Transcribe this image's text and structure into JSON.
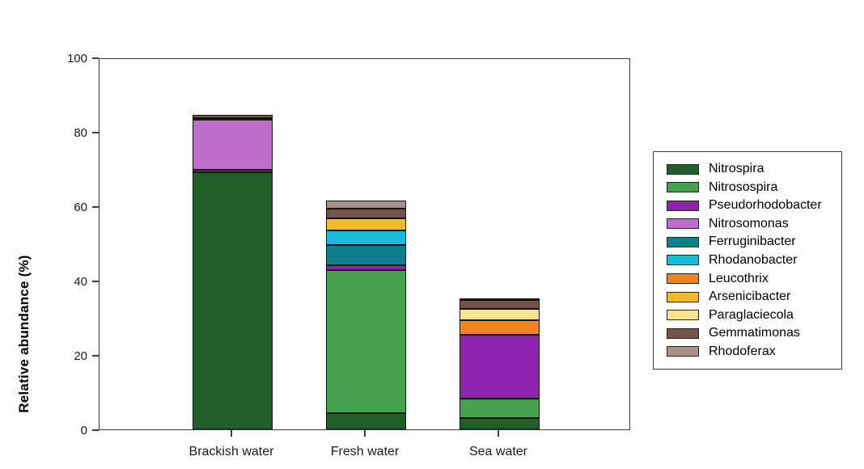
{
  "chart_data": {
    "type": "bar",
    "subtype": "stacked",
    "title": "",
    "xlabel": "",
    "ylabel": "Relative abundance (%)",
    "ylim": [
      0,
      100
    ],
    "ytick_values": [
      0,
      20,
      40,
      60,
      80,
      100
    ],
    "grid": false,
    "legend_position": "right",
    "categories": [
      "Brackish water",
      "Fresh water",
      "Sea water"
    ],
    "series": [
      {
        "name": "Nitrospira",
        "color": "#1f5e27",
        "values": [
          69.2,
          4.3,
          3.0
        ]
      },
      {
        "name": "Nitrosospira",
        "color": "#47a04b",
        "values": [
          0,
          38.5,
          5.3
        ]
      },
      {
        "name": "Pseudorhodobacter",
        "color": "#8e24ad",
        "values": [
          0.5,
          1.3,
          17.2
        ]
      },
      {
        "name": "Nitrosomonas",
        "color": "#bd6cc9",
        "values": [
          13.5,
          0,
          0
        ]
      },
      {
        "name": "Ferruginibacter",
        "color": "#0f7f8b",
        "values": [
          0,
          5.5,
          0
        ]
      },
      {
        "name": "Rhodanobacter",
        "color": "#18bcd8",
        "values": [
          0,
          3.9,
          0
        ]
      },
      {
        "name": "Leucothrix",
        "color": "#f58220",
        "values": [
          0,
          0,
          3.8
        ]
      },
      {
        "name": "Arsenicibacter",
        "color": "#f5ba28",
        "values": [
          0.5,
          3.3,
          0
        ]
      },
      {
        "name": "Paraglaciecola",
        "color": "#f9e38e",
        "values": [
          0,
          0,
          3.0
        ]
      },
      {
        "name": "Gemmatimonas",
        "color": "#74544a",
        "values": [
          0.8,
          2.5,
          2.4
        ]
      },
      {
        "name": "Rhodoferax",
        "color": "#a69088",
        "values": [
          0,
          2.2,
          0.6
        ]
      }
    ],
    "totals": [
      84.5,
      61.5,
      35.3
    ]
  }
}
